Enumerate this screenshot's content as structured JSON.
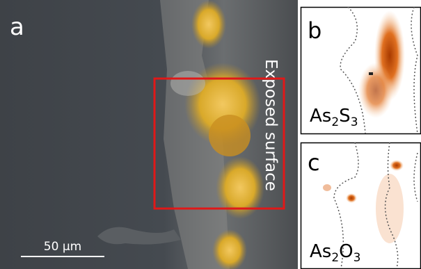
{
  "panels": [
    {
      "letter": "a",
      "annotation": "Exposed surface",
      "scale_bar": "50 µm"
    },
    {
      "letter": "b",
      "formula_parts": [
        "As",
        "2",
        "S",
        "3"
      ]
    },
    {
      "letter": "c",
      "formula_parts": [
        "As",
        "2",
        "O",
        "3"
      ]
    }
  ]
}
